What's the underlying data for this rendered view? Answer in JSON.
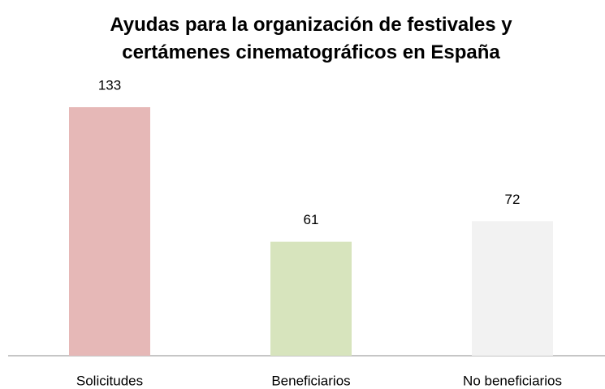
{
  "chart_data": {
    "type": "bar",
    "title": "Ayudas para la organización de festivales y certámenes cinematográficos en España",
    "categories": [
      "Solicitudes",
      "Beneficiarios",
      "No beneficiarios"
    ],
    "values": [
      133,
      61,
      72
    ],
    "colors": [
      "#e6b8b7",
      "#d7e4bd",
      "#f2f2f2"
    ]
  }
}
